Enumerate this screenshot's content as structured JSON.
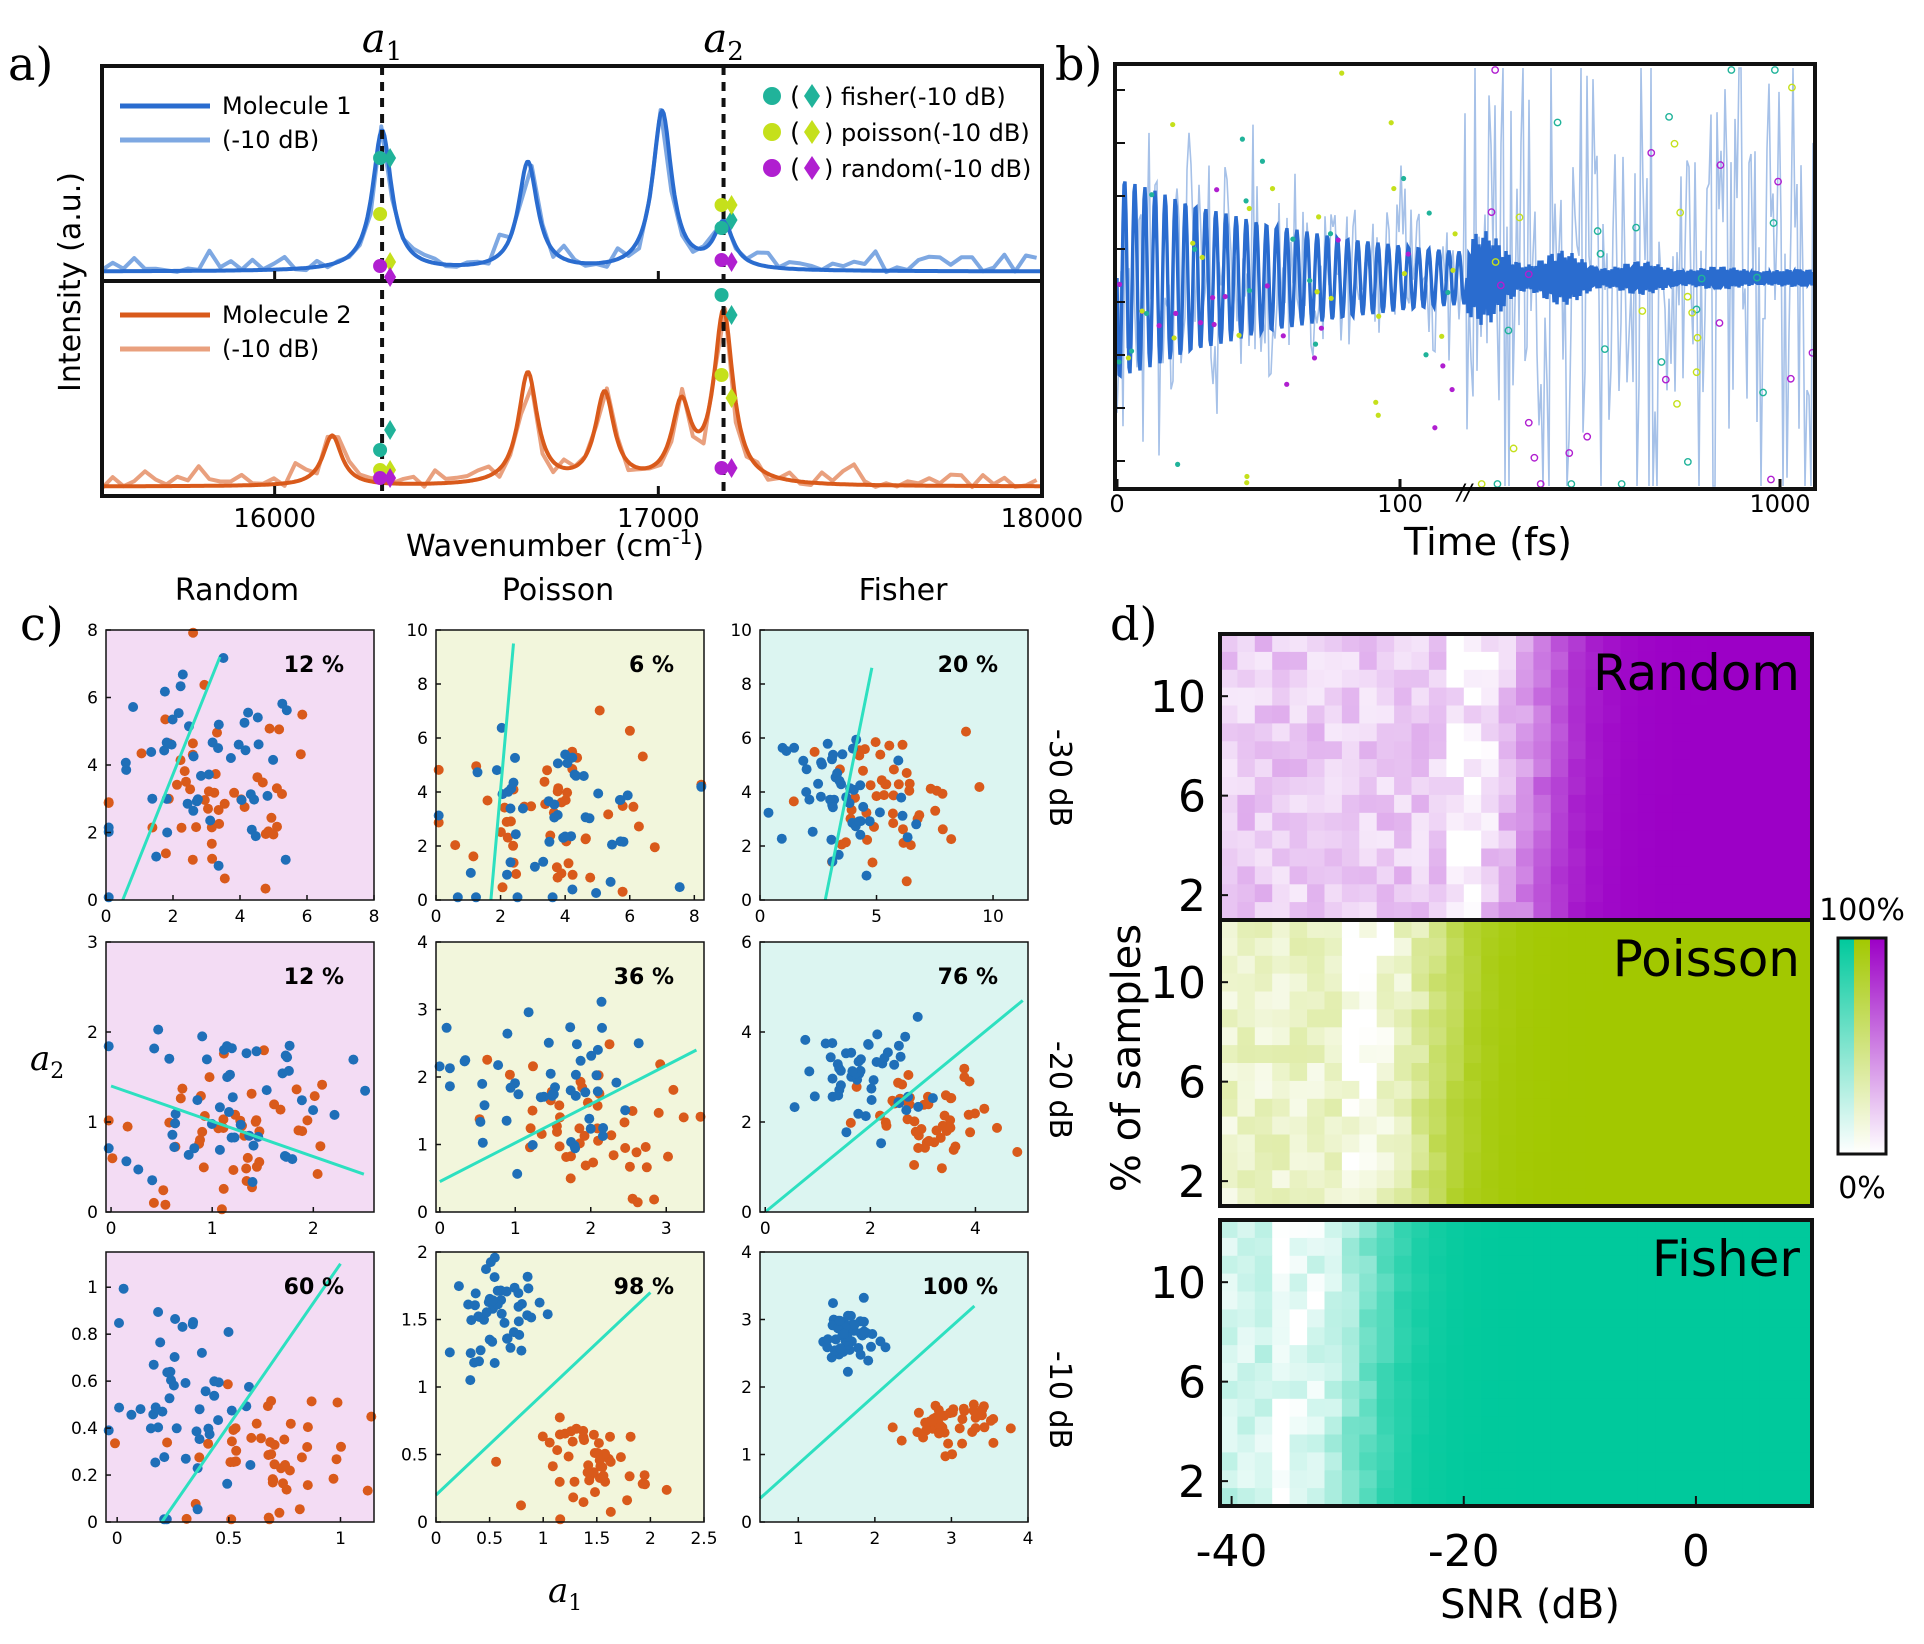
{
  "panel_labels": {
    "a": "a)",
    "b": "b)",
    "c": "c)",
    "d": "d)"
  },
  "colors": {
    "mol1": "#2a6ccf",
    "mol1_noisy": "#7ea8e2",
    "mol2": "#d95a1b",
    "mol2_noisy": "#e9a07e",
    "fisher": "#20b39a",
    "poisson": "#c5e01b",
    "random": "#b01fd0",
    "blue_pts": "#1f6fb8",
    "orange_pts": "#d95a1b",
    "line": "#2de0c0",
    "bg_random": "#f3dcf4",
    "bg_poisson": "#f2f6dc",
    "bg_fisher": "#dcf5f1",
    "heat_random": "#9c00c6",
    "heat_poisson": "#a2c800",
    "heat_fisher": "#00c99c"
  },
  "chart_data": [
    {
      "id": "a",
      "type": "line",
      "ylabel": "Intensity (a.u.)",
      "xlabel_main": "Wavenumber (cm",
      "xlabel_sup": "-1",
      "xlabel_close": ")",
      "xlim": [
        15550,
        18000
      ],
      "xticks": [
        "16000",
        "17000",
        "18000"
      ],
      "xtick_values": [
        16000,
        17000,
        18000
      ],
      "markers": [
        {
          "label": "a",
          "sub": "1",
          "x": 16280
        },
        {
          "label": "a",
          "sub": "2",
          "x": 17170
        }
      ],
      "top_legend": [
        "Molecule 1",
        " (-10 dB)"
      ],
      "bottom_legend": [
        "Molecule 2",
        "(-10 dB)"
      ],
      "marker_legend": [
        "(",
        ") fisher(-10 dB)",
        ") poisson(-10 dB)",
        ") random(-10 dB)"
      ],
      "marker_legend_names": [
        "fisher(-10 dB)",
        "poisson(-10 dB)",
        "random(-10 dB)"
      ],
      "mol1_peaks": [
        {
          "x": 16280,
          "h": 0.78
        },
        {
          "x": 16660,
          "h": 0.6
        },
        {
          "x": 17010,
          "h": 0.88
        },
        {
          "x": 17170,
          "h": 0.25
        }
      ],
      "mol2_peaks": [
        {
          "x": 16150,
          "h": 0.28
        },
        {
          "x": 16660,
          "h": 0.62
        },
        {
          "x": 16860,
          "h": 0.5
        },
        {
          "x": 17060,
          "h": 0.42
        },
        {
          "x": 17170,
          "h": 0.95
        }
      ]
    },
    {
      "id": "b",
      "type": "line",
      "xlabel": "Time (fs)",
      "xticks": [
        "0",
        "100",
        "1000"
      ],
      "break_mark": "//"
    },
    {
      "id": "c",
      "type": "scatter",
      "columns": [
        "Random",
        "Poisson",
        "Fisher"
      ],
      "rows": [
        "-30 dB",
        "-20 dB",
        "-10 dB"
      ],
      "xlabel": "a",
      "xlabel_sub": "1",
      "ylabel": "a",
      "ylabel_sub": "2",
      "subplots": [
        {
          "row": 0,
          "col": 0,
          "pct": "12 %",
          "xlim": [
            0,
            8
          ],
          "ylim": [
            0,
            8
          ],
          "xticks": [
            "0",
            "2",
            "4",
            "6",
            "8"
          ],
          "yticks": [
            "0",
            "2",
            "4",
            "6",
            "8"
          ],
          "line": [
            [
              0.5,
              0
            ],
            [
              3.4,
              7.2
            ]
          ],
          "blue": {
            "cx": 3.0,
            "cy": 3.5,
            "sx": 1.6,
            "sy": 1.5
          },
          "orange": {
            "cx": 3.3,
            "cy": 3.0,
            "sx": 1.6,
            "sy": 1.6
          }
        },
        {
          "row": 0,
          "col": 1,
          "pct": "6 %",
          "xlim": [
            0,
            8.3
          ],
          "ylim": [
            0,
            10
          ],
          "xticks": [
            "0",
            "2",
            "4",
            "6",
            "8"
          ],
          "yticks": [
            "0",
            "2",
            "4",
            "6",
            "8",
            "10"
          ],
          "line": [
            [
              1.7,
              0
            ],
            [
              2.4,
              9.5
            ]
          ],
          "blue": {
            "cx": 3.5,
            "cy": 3.0,
            "sx": 1.7,
            "sy": 1.5
          },
          "orange": {
            "cx": 4.0,
            "cy": 3.2,
            "sx": 1.8,
            "sy": 1.6
          }
        },
        {
          "row": 0,
          "col": 2,
          "pct": "20 %",
          "xlim": [
            0,
            11.5
          ],
          "ylim": [
            0,
            10
          ],
          "xticks": [
            "0",
            "5",
            "10"
          ],
          "yticks": [
            "0",
            "2",
            "4",
            "6",
            "8",
            "10"
          ],
          "line": [
            [
              2.8,
              0
            ],
            [
              4.8,
              8.6
            ]
          ],
          "blue": {
            "cx": 3.5,
            "cy": 3.8,
            "sx": 1.5,
            "sy": 1.6
          },
          "orange": {
            "cx": 5.2,
            "cy": 3.6,
            "sx": 1.8,
            "sy": 1.3
          }
        },
        {
          "row": 1,
          "col": 0,
          "pct": "12 %",
          "xlim": [
            -0.05,
            2.6
          ],
          "ylim": [
            0,
            3
          ],
          "xticks": [
            "0",
            "1",
            "2"
          ],
          "yticks": [
            "0",
            "1",
            "2",
            "3"
          ],
          "line": [
            [
              0,
              1.4
            ],
            [
              2.5,
              0.42
            ]
          ],
          "blue": {
            "cx": 1.2,
            "cy": 1.3,
            "sx": 0.55,
            "sy": 0.5
          },
          "orange": {
            "cx": 1.2,
            "cy": 0.9,
            "sx": 0.55,
            "sy": 0.5
          }
        },
        {
          "row": 1,
          "col": 1,
          "pct": "36 %",
          "xlim": [
            -0.05,
            3.5
          ],
          "ylim": [
            0,
            4
          ],
          "xticks": [
            "0",
            "1",
            "2",
            "3"
          ],
          "yticks": [
            "0",
            "1",
            "2",
            "3",
            "4"
          ],
          "line": [
            [
              0,
              0.45
            ],
            [
              3.4,
              2.4
            ]
          ],
          "blue": {
            "cx": 1.3,
            "cy": 1.9,
            "sx": 0.6,
            "sy": 0.6
          },
          "orange": {
            "cx": 1.8,
            "cy": 1.2,
            "sx": 0.7,
            "sy": 0.55
          }
        },
        {
          "row": 1,
          "col": 2,
          "pct": "76 %",
          "xlim": [
            -0.1,
            5
          ],
          "ylim": [
            0,
            6
          ],
          "xticks": [
            "0",
            "2",
            "4"
          ],
          "yticks": [
            "0",
            "2",
            "4",
            "6"
          ],
          "line": [
            [
              0,
              0
            ],
            [
              4.9,
              4.7
            ]
          ],
          "blue": {
            "cx": 1.9,
            "cy": 3.1,
            "sx": 0.6,
            "sy": 0.6
          },
          "orange": {
            "cx": 3.2,
            "cy": 1.9,
            "sx": 0.7,
            "sy": 0.6
          }
        },
        {
          "row": 2,
          "col": 0,
          "pct": "60 %",
          "xlim": [
            -0.05,
            1.15
          ],
          "ylim": [
            0,
            1.15
          ],
          "xticks": [
            "0",
            "0.5",
            "1"
          ],
          "yticks": [
            "0",
            "0.2",
            "0.4",
            "0.6",
            "0.8",
            "1"
          ],
          "line": [
            [
              0.2,
              0
            ],
            [
              1.0,
              1.1
            ]
          ],
          "blue": {
            "cx": 0.3,
            "cy": 0.5,
            "sx": 0.17,
            "sy": 0.22
          },
          "orange": {
            "cx": 0.65,
            "cy": 0.28,
            "sx": 0.22,
            "sy": 0.14
          }
        },
        {
          "row": 2,
          "col": 1,
          "pct": "98 %",
          "xlim": [
            0,
            2.5
          ],
          "ylim": [
            0,
            2
          ],
          "xticks": [
            "0",
            "0.5",
            "1",
            "1.5",
            "2",
            "2.5"
          ],
          "yticks": [
            "0",
            "0.5",
            "1",
            "1.5",
            "2"
          ],
          "line": [
            [
              0,
              0.2
            ],
            [
              2.0,
              1.7
            ]
          ],
          "blue": {
            "cx": 0.6,
            "cy": 1.55,
            "sx": 0.22,
            "sy": 0.17
          },
          "orange": {
            "cx": 1.5,
            "cy": 0.42,
            "sx": 0.25,
            "sy": 0.17
          }
        },
        {
          "row": 2,
          "col": 2,
          "pct": "100 %",
          "xlim": [
            0.5,
            4
          ],
          "ylim": [
            0,
            4
          ],
          "xticks": [
            "1",
            "2",
            "3",
            "4"
          ],
          "yticks": [
            "0",
            "1",
            "2",
            "3",
            "4"
          ],
          "line": [
            [
              0.5,
              0.35
            ],
            [
              3.3,
              3.2
            ]
          ],
          "blue": {
            "cx": 1.65,
            "cy": 2.75,
            "sx": 0.18,
            "sy": 0.22
          },
          "orange": {
            "cx": 2.95,
            "cy": 1.45,
            "sx": 0.3,
            "sy": 0.2
          }
        }
      ]
    },
    {
      "id": "d",
      "type": "heatmap",
      "panels": [
        "Random",
        "Poisson",
        "Fisher"
      ],
      "ylabel": "% of samples",
      "xlabel": "SNR (dB)",
      "xticks": [
        "-40",
        "-20",
        "0"
      ],
      "xtick_values": [
        -40,
        -20,
        0
      ],
      "yticks": [
        "2",
        "6",
        "10"
      ],
      "ytick_values": [
        2,
        6,
        10
      ],
      "xlim": [
        -41,
        10
      ],
      "ylim": [
        1,
        12.5
      ],
      "thresholds_db": [
        -13,
        -22,
        -28
      ],
      "colorbar": {
        "top": "100%",
        "bottom": "0%"
      }
    }
  ]
}
